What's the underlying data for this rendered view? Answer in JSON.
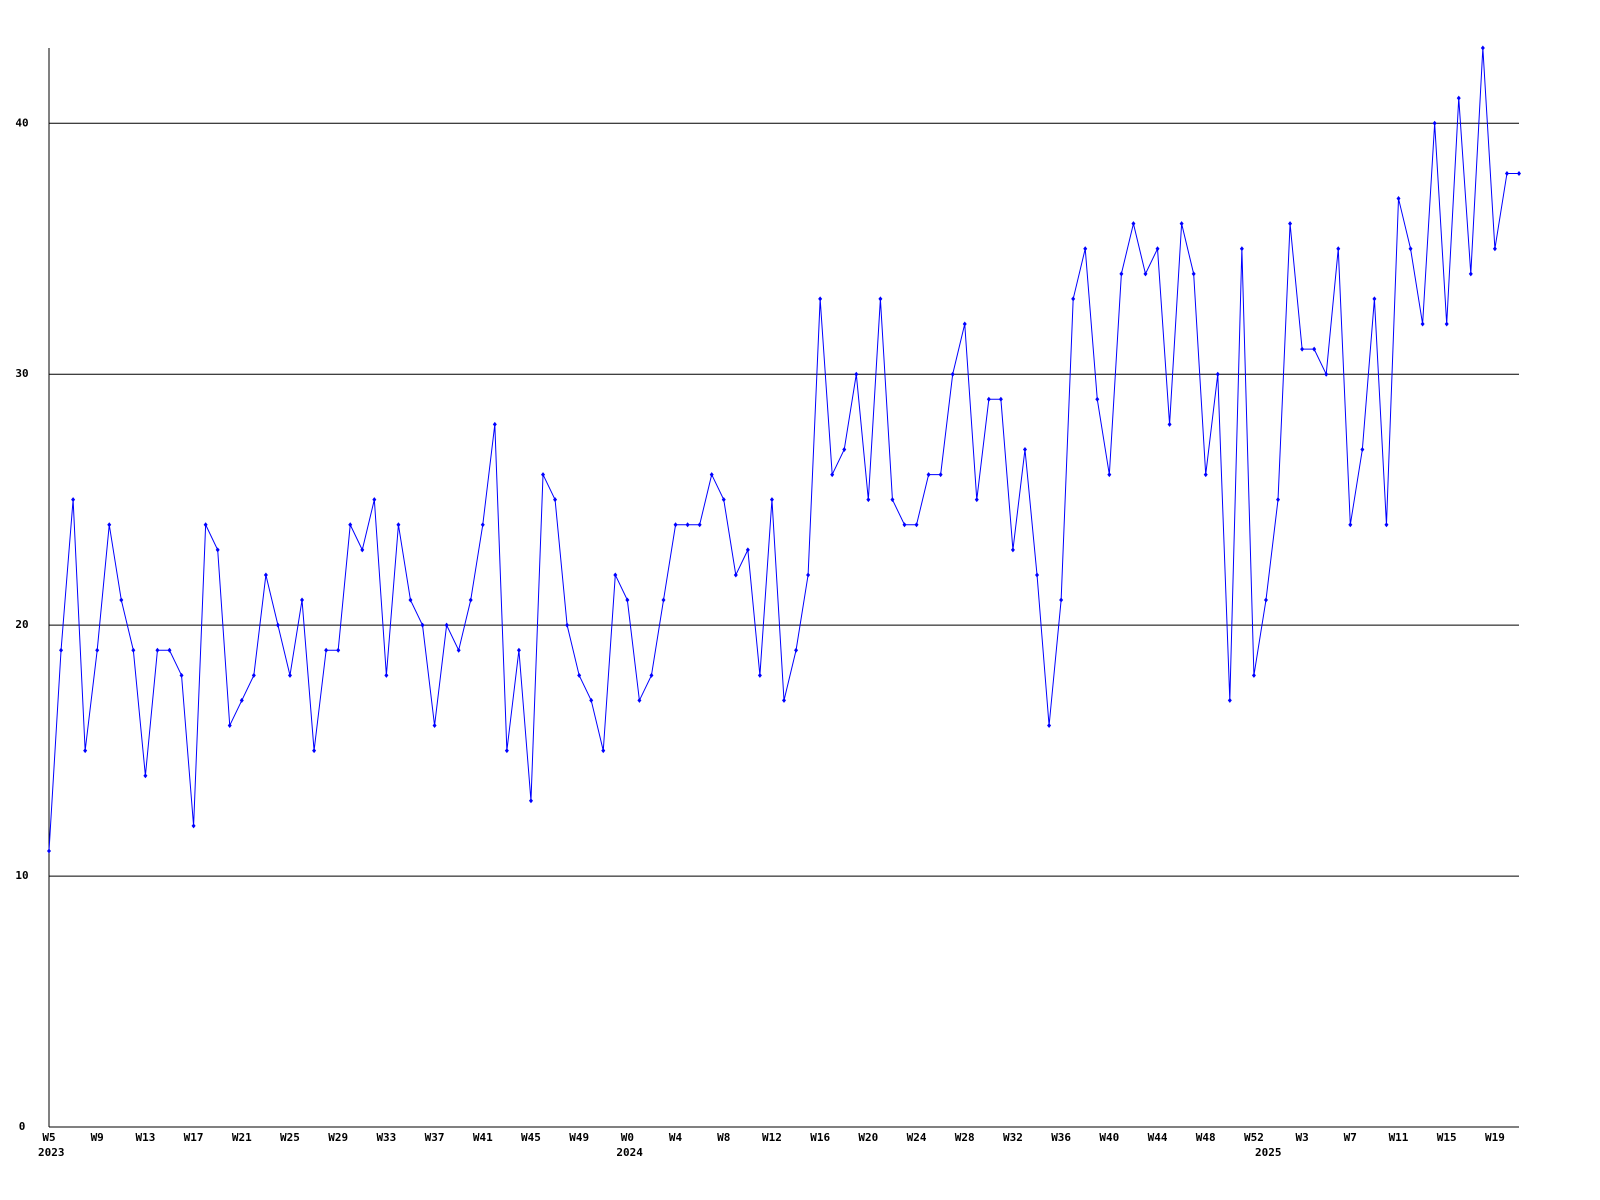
{
  "chart_data": {
    "type": "line",
    "categories": [
      "W5",
      null,
      null,
      null,
      "W9",
      null,
      null,
      null,
      "W13",
      null,
      null,
      null,
      "W17",
      null,
      null,
      null,
      "W21",
      null,
      null,
      null,
      "W25",
      null,
      null,
      null,
      "W29",
      null,
      null,
      null,
      "W33",
      null,
      null,
      null,
      "W37",
      null,
      null,
      null,
      "W41",
      null,
      null,
      null,
      "W45",
      null,
      null,
      null,
      "W49",
      null,
      null,
      null,
      "W0",
      null,
      null,
      null,
      "W4",
      null,
      null,
      null,
      "W8",
      null,
      null,
      null,
      "W12",
      null,
      null,
      null,
      "W16",
      null,
      null,
      null,
      "W20",
      null,
      null,
      null,
      "W24",
      null,
      null,
      null,
      "W28",
      null,
      null,
      null,
      "W32",
      null,
      null,
      null,
      "W36",
      null,
      null,
      null,
      "W40",
      null,
      null,
      null,
      "W44",
      null,
      null,
      null,
      "W48",
      null,
      null,
      null,
      "W52",
      null,
      null,
      null,
      "W3",
      null,
      null,
      null,
      "W7",
      null,
      null,
      null,
      "W11",
      null,
      null,
      null,
      "W15",
      null,
      null,
      null,
      "W19",
      null,
      null
    ],
    "x_sublabels": [
      "2023",
      null,
      null,
      null,
      null,
      null,
      null,
      null,
      null,
      null,
      null,
      null,
      null,
      null,
      null,
      null,
      null,
      null,
      null,
      null,
      null,
      null,
      null,
      null,
      null,
      null,
      null,
      null,
      null,
      null,
      null,
      null,
      null,
      null,
      null,
      null,
      null,
      null,
      null,
      null,
      null,
      null,
      null,
      null,
      null,
      null,
      null,
      null,
      "2024",
      null,
      null,
      null,
      null,
      null,
      null,
      null,
      null,
      null,
      null,
      null,
      null,
      null,
      null,
      null,
      null,
      null,
      null,
      null,
      null,
      null,
      null,
      null,
      null,
      null,
      null,
      null,
      null,
      null,
      null,
      null,
      null,
      null,
      null,
      null,
      null,
      null,
      null,
      null,
      null,
      null,
      null,
      null,
      null,
      null,
      null,
      null,
      null,
      null,
      null,
      null,
      null,
      "2025",
      null,
      null,
      null,
      null,
      null,
      null,
      null,
      null,
      null,
      null,
      null,
      null,
      null,
      null,
      null,
      null,
      null,
      null,
      null,
      null,
      null
    ],
    "series": [
      {
        "color": "#0000ff",
        "values": [
          11,
          19,
          25,
          15,
          19,
          24,
          21,
          19,
          14,
          19,
          19,
          18,
          12,
          24,
          23,
          16,
          17,
          18,
          22,
          20,
          18,
          21,
          15,
          19,
          19,
          24,
          23,
          25,
          18,
          24,
          21,
          20,
          16,
          20,
          19,
          21,
          24,
          28,
          15,
          19,
          13,
          26,
          25,
          20,
          18,
          17,
          15,
          22,
          21,
          17,
          18,
          21,
          24,
          24,
          24,
          26,
          25,
          22,
          23,
          18,
          25,
          17,
          19,
          22,
          33,
          26,
          27,
          30,
          25,
          33,
          25,
          24,
          24,
          26,
          26,
          30,
          32,
          25,
          29,
          29,
          23,
          27,
          22,
          16,
          21,
          33,
          35,
          29,
          26,
          34,
          36,
          34,
          35,
          28,
          36,
          34,
          26,
          30,
          17,
          35,
          18,
          21,
          25,
          36,
          31,
          31,
          30,
          35,
          24,
          27,
          33,
          24,
          37,
          35,
          32,
          40,
          32,
          41,
          34,
          43,
          35,
          38,
          38
        ]
      }
    ],
    "ylim": [
      0,
      43
    ],
    "yticks": [
      0,
      10,
      20,
      30,
      40
    ],
    "grid": true
  }
}
